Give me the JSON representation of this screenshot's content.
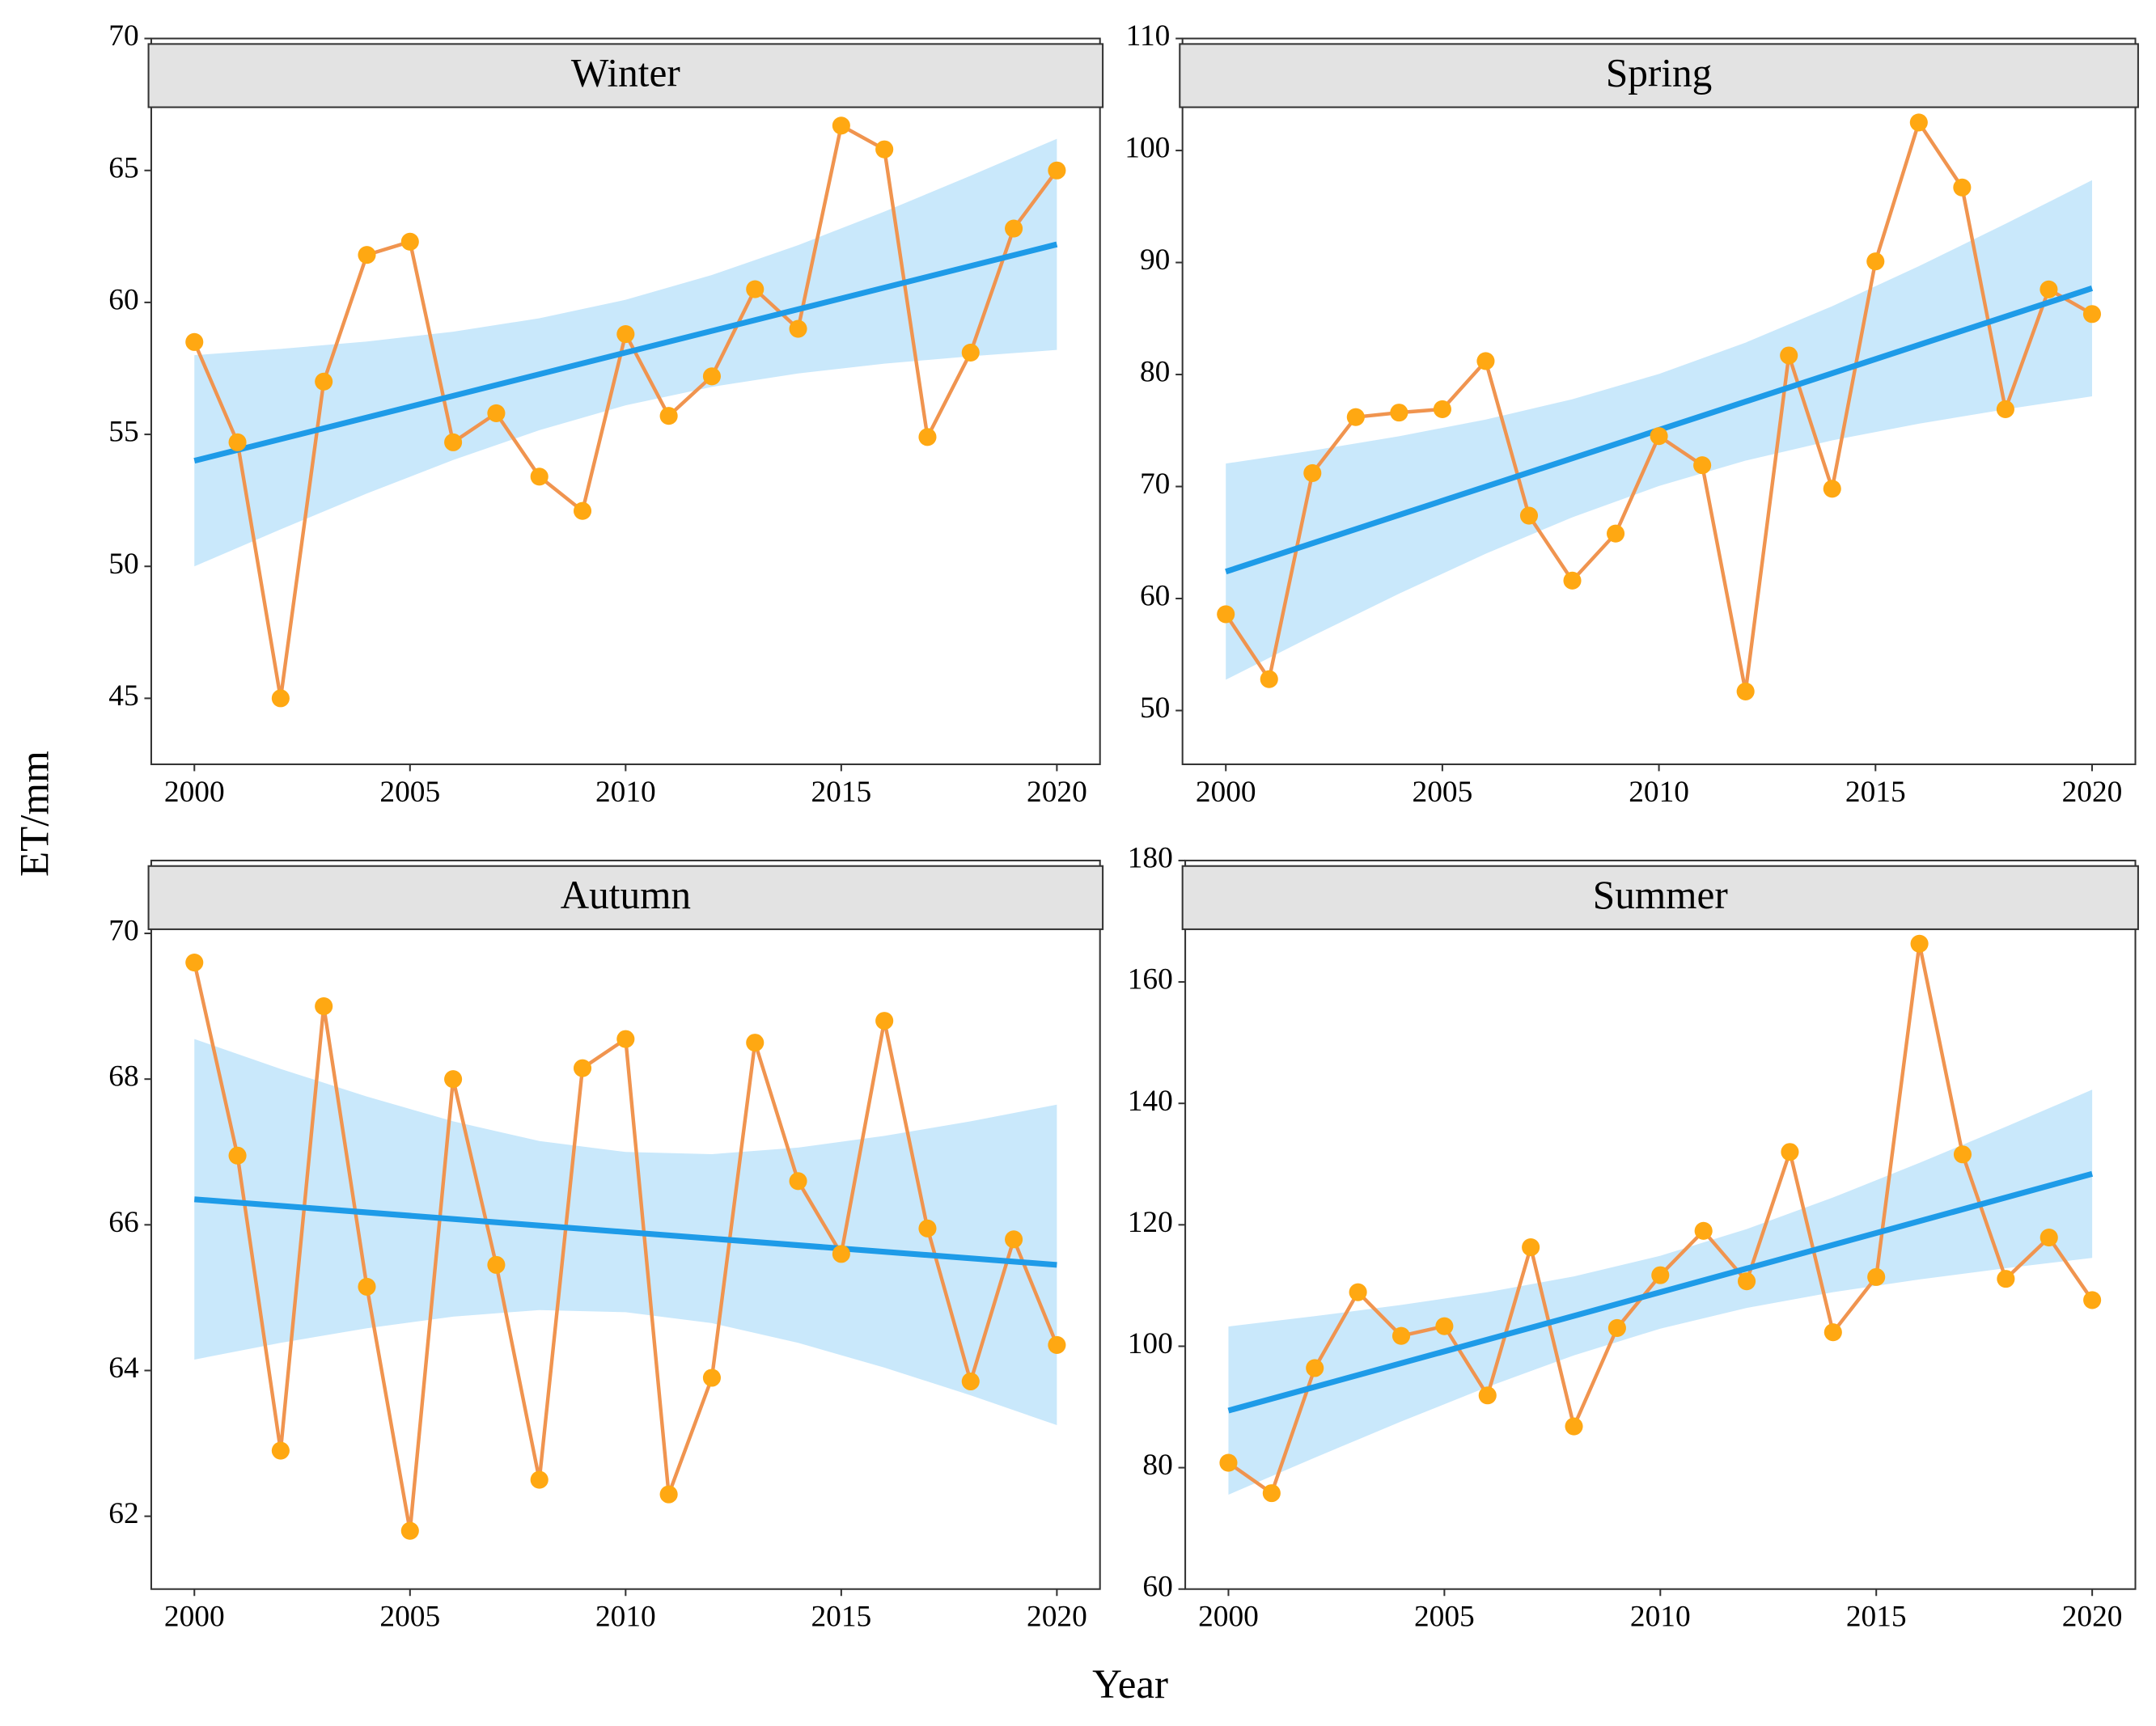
{
  "x_label": "Year",
  "y_label": "ET/mm",
  "chart_data": [
    {
      "type": "line",
      "title": "Winter",
      "x": [
        2000,
        2001,
        2002,
        2003,
        2004,
        2005,
        2006,
        2007,
        2008,
        2009,
        2010,
        2011,
        2012,
        2013,
        2014,
        2015,
        2016,
        2017,
        2018,
        2019,
        2020
      ],
      "values": [
        58.5,
        54.7,
        45.0,
        57.0,
        61.8,
        62.3,
        54.7,
        55.8,
        53.4,
        52.1,
        58.8,
        55.7,
        57.2,
        60.5,
        59.0,
        66.7,
        65.8,
        54.9,
        58.1,
        62.8,
        65.0
      ],
      "line_color": "#f0944f",
      "marker_color": "#ffa812",
      "fit": {
        "x": [
          2000,
          2020
        ],
        "values": [
          54.0,
          62.2
        ],
        "color": "#1e9be8"
      },
      "band": {
        "x": [
          2000,
          2002,
          2004,
          2006,
          2008,
          2010,
          2012,
          2014,
          2016,
          2018,
          2020
        ],
        "lower": [
          50.0,
          51.4,
          52.76,
          54.03,
          55.16,
          56.1,
          56.8,
          57.31,
          57.68,
          57.96,
          58.2
        ],
        "upper": [
          58.0,
          58.24,
          58.52,
          58.89,
          59.4,
          60.1,
          61.04,
          62.17,
          63.44,
          64.8,
          66.2
        ],
        "color": "#c9e8fb"
      },
      "xlim": [
        1999,
        2021
      ],
      "xticks": [
        2000,
        2005,
        2010,
        2015,
        2020
      ],
      "ylim": [
        42.5,
        70
      ],
      "yticks": [
        45,
        50,
        55,
        60,
        65,
        70
      ]
    },
    {
      "type": "line",
      "title": "Spring",
      "x": [
        2000,
        2001,
        2002,
        2003,
        2004,
        2005,
        2006,
        2007,
        2008,
        2009,
        2010,
        2011,
        2012,
        2013,
        2014,
        2015,
        2016,
        2017,
        2018,
        2019,
        2020
      ],
      "values": [
        58.6,
        52.8,
        71.2,
        76.2,
        76.6,
        76.9,
        81.2,
        67.4,
        61.6,
        65.8,
        74.5,
        71.9,
        51.7,
        81.7,
        69.8,
        90.1,
        102.5,
        96.7,
        76.9,
        87.6,
        85.4
      ],
      "line_color": "#f0944f",
      "marker_color": "#ffa812",
      "fit": {
        "x": [
          2000,
          2020
        ],
        "values": [
          62.4,
          87.7
        ],
        "color": "#1e9be8"
      },
      "band": {
        "x": [
          2000,
          2002,
          2004,
          2006,
          2008,
          2010,
          2012,
          2014,
          2016,
          2018,
          2020
        ],
        "lower": [
          52.75,
          56.65,
          60.43,
          64.0,
          67.25,
          70.05,
          72.31,
          74.12,
          75.61,
          76.89,
          78.05
        ],
        "upper": [
          72.05,
          73.21,
          74.49,
          75.98,
          77.79,
          80.05,
          82.85,
          86.1,
          89.67,
          93.45,
          97.35
        ],
        "color": "#c9e8fb"
      },
      "xlim": [
        1999,
        2021
      ],
      "xticks": [
        2000,
        2005,
        2010,
        2015,
        2020
      ],
      "ylim": [
        45.2,
        110
      ],
      "yticks": [
        50,
        60,
        70,
        80,
        90,
        100,
        110
      ]
    },
    {
      "type": "line",
      "title": "Autumn",
      "x": [
        2000,
        2001,
        2002,
        2003,
        2004,
        2005,
        2006,
        2007,
        2008,
        2009,
        2010,
        2011,
        2012,
        2013,
        2014,
        2015,
        2016,
        2017,
        2018,
        2019,
        2020
      ],
      "values": [
        69.6,
        66.95,
        62.9,
        69.0,
        65.15,
        61.8,
        68.0,
        65.45,
        62.5,
        68.15,
        68.55,
        62.3,
        63.9,
        68.5,
        66.6,
        65.6,
        68.8,
        65.95,
        63.85,
        65.8,
        64.35
      ],
      "line_color": "#f0944f",
      "marker_color": "#ffa812",
      "fit": {
        "x": [
          2000,
          2020
        ],
        "values": [
          66.35,
          65.45
        ],
        "color": "#1e9be8"
      },
      "band": {
        "x": [
          2000,
          2002,
          2004,
          2006,
          2008,
          2010,
          2012,
          2014,
          2016,
          2018,
          2020
        ],
        "lower": [
          64.15,
          64.38,
          64.58,
          64.74,
          64.83,
          64.8,
          64.65,
          64.38,
          64.04,
          63.66,
          63.25
        ],
        "upper": [
          68.55,
          68.14,
          67.76,
          67.42,
          67.15,
          67.0,
          66.97,
          67.06,
          67.22,
          67.42,
          67.65
        ],
        "color": "#c9e8fb"
      },
      "xlim": [
        1999,
        2021
      ],
      "xticks": [
        2000,
        2005,
        2010,
        2015,
        2020
      ],
      "ylim": [
        61,
        71
      ],
      "yticks": [
        62,
        64,
        66,
        68,
        70
      ]
    },
    {
      "type": "line",
      "title": "Summer",
      "x": [
        2000,
        2001,
        2002,
        2003,
        2004,
        2005,
        2006,
        2007,
        2008,
        2009,
        2010,
        2011,
        2012,
        2013,
        2014,
        2015,
        2016,
        2017,
        2018,
        2019,
        2020
      ],
      "values": [
        80.8,
        75.8,
        96.4,
        108.9,
        101.7,
        103.3,
        91.9,
        116.3,
        86.8,
        103.0,
        111.7,
        119.0,
        110.7,
        132.0,
        102.3,
        111.4,
        166.3,
        131.6,
        111.1,
        117.9,
        107.6
      ],
      "line_color": "#f0944f",
      "marker_color": "#ffa812",
      "fit": {
        "x": [
          2000,
          2020
        ],
        "values": [
          89.4,
          128.4
        ],
        "color": "#1e9be8"
      },
      "band": {
        "x": [
          2000,
          2002,
          2004,
          2006,
          2008,
          2010,
          2012,
          2014,
          2016,
          2018,
          2020
        ],
        "lower": [
          75.55,
          81.65,
          87.6,
          93.3,
          98.5,
          102.9,
          106.3,
          108.9,
          111.0,
          112.85,
          114.55
        ],
        "upper": [
          103.25,
          104.95,
          106.8,
          108.9,
          111.5,
          114.9,
          119.3,
          124.5,
          130.2,
          136.15,
          142.25
        ],
        "color": "#c9e8fb"
      },
      "xlim": [
        1999,
        2021
      ],
      "xticks": [
        2000,
        2005,
        2010,
        2015,
        2020
      ],
      "ylim": [
        60,
        180
      ],
      "yticks": [
        60,
        80,
        100,
        120,
        140,
        160,
        180
      ]
    }
  ]
}
